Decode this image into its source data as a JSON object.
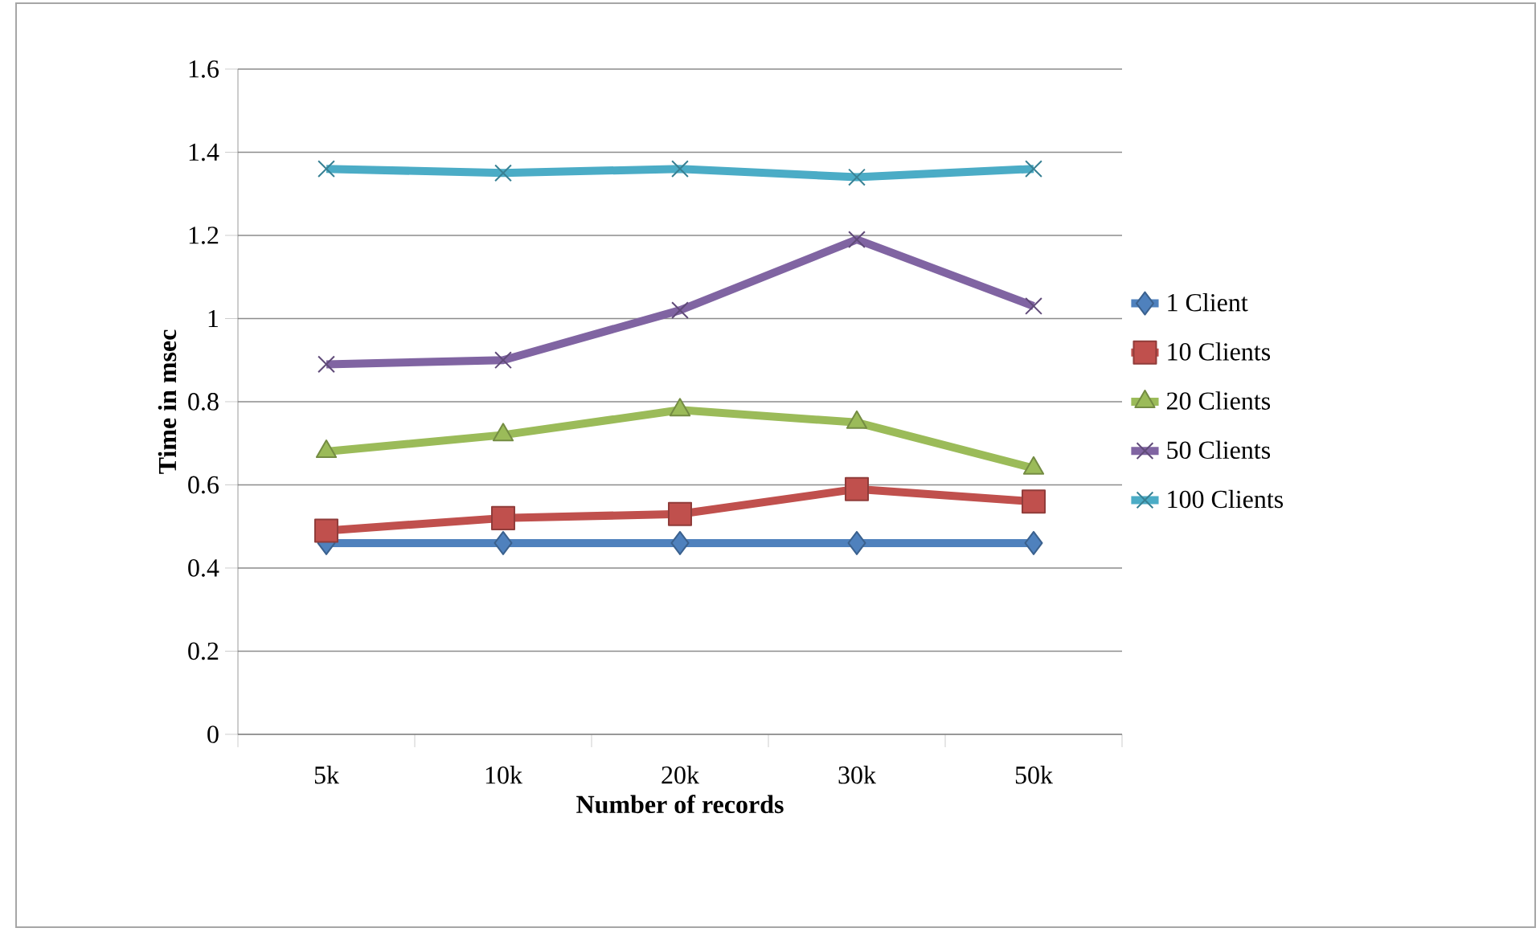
{
  "chart_data": {
    "type": "line",
    "xlabel": "Number of records",
    "ylabel": "Time in msec",
    "categories": [
      "5k",
      "10k",
      "20k",
      "30k",
      "50k"
    ],
    "series": [
      {
        "name": "1 Client",
        "color": "#4f81bd",
        "marker": "diamond",
        "values": [
          0.46,
          0.46,
          0.46,
          0.46,
          0.46
        ]
      },
      {
        "name": "10 Clients",
        "color": "#c0504d",
        "marker": "square",
        "values": [
          0.49,
          0.52,
          0.53,
          0.59,
          0.56
        ]
      },
      {
        "name": "20 Clients",
        "color": "#9bbb59",
        "marker": "triangle",
        "values": [
          0.68,
          0.72,
          0.78,
          0.75,
          0.64
        ]
      },
      {
        "name": "50 Clients",
        "color": "#8064a2",
        "marker": "cross",
        "values": [
          0.89,
          0.9,
          1.02,
          1.19,
          1.03
        ]
      },
      {
        "name": "100 Clients",
        "color": "#4bacc6",
        "marker": "cross",
        "values": [
          1.36,
          1.35,
          1.36,
          1.34,
          1.36
        ]
      }
    ],
    "ylim": [
      0,
      1.6
    ],
    "yticks": [
      0,
      0.2,
      0.4,
      0.6,
      0.8,
      1,
      1.2,
      1.4,
      1.6
    ],
    "grid": "y",
    "legend": "right",
    "line_style": "solid"
  }
}
